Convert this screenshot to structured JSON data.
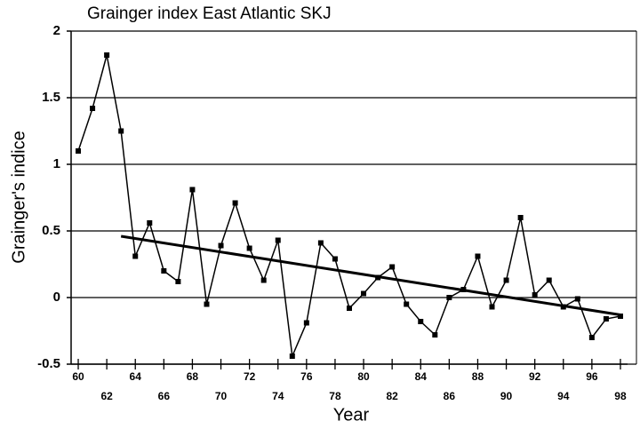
{
  "chart_data": {
    "type": "line",
    "title": "Grainger index East Atlantic SKJ",
    "ylabel": "Grainger's indice",
    "xlabel": "Year",
    "x": [
      60,
      61,
      62,
      63,
      64,
      65,
      66,
      67,
      68,
      69,
      70,
      71,
      72,
      73,
      74,
      75,
      76,
      77,
      78,
      79,
      80,
      81,
      82,
      83,
      84,
      85,
      86,
      87,
      88,
      89,
      90,
      91,
      92,
      93,
      94,
      95,
      96,
      97,
      98
    ],
    "series": [
      {
        "color": "#000000",
        "values": [
          1.1,
          1.42,
          1.82,
          1.25,
          0.31,
          0.56,
          0.2,
          0.12,
          0.81,
          -0.05,
          0.39,
          0.71,
          0.37,
          0.13,
          0.43,
          -0.44,
          -0.19,
          0.41,
          0.29,
          -0.08,
          0.03,
          0.15,
          0.23,
          -0.05,
          -0.18,
          -0.28,
          0.0,
          0.06,
          0.31,
          -0.07,
          0.13,
          0.6,
          0.02,
          0.13,
          -0.07,
          -0.01,
          -0.3,
          -0.16,
          -0.14
        ]
      },
      {
        "color": "#000000",
        "x": [
          63,
          98
        ],
        "values": [
          0.46,
          -0.13
        ]
      }
    ],
    "xlim": [
      59.5,
      98.5
    ],
    "xticks": [
      60,
      62,
      64,
      66,
      68,
      70,
      72,
      74,
      76,
      78,
      80,
      82,
      84,
      86,
      88,
      90,
      92,
      94,
      96,
      98
    ],
    "ylim": [
      -0.5,
      2
    ],
    "yticks": [
      -0.5,
      0,
      0.5,
      1,
      1.5,
      2
    ],
    "grid": true
  }
}
